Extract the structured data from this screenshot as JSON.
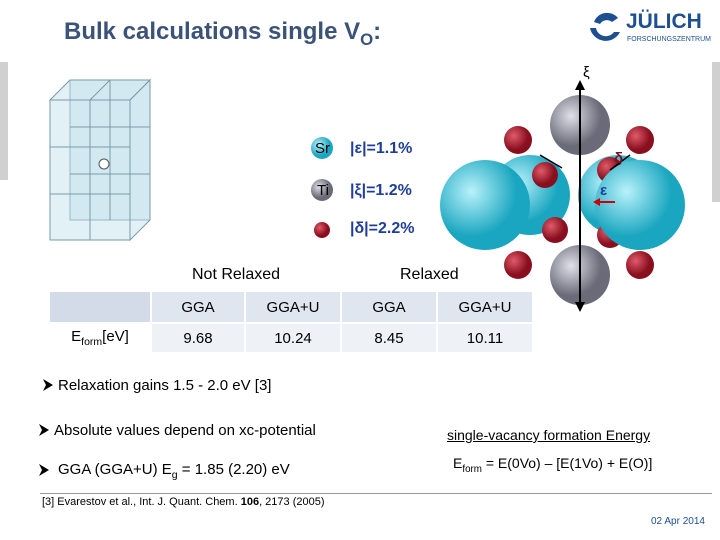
{
  "header": {
    "title": "Bulk calculations single V",
    "title_sub": "O",
    "title_tail": ":",
    "logo": "JÜLICH",
    "logo_sub": "FORSCHUNGSZENTRUM"
  },
  "figure": {
    "legend": [
      {
        "atom": "Sr",
        "label": "|ε|=1.1%"
      },
      {
        "atom": "Ti",
        "label": "|ξ|=1.2%"
      },
      {
        "label": "|δ|=2.2%"
      }
    ],
    "arrows": {
      "xi": "ξ",
      "delta": "δ",
      "epsilon": "ε"
    }
  },
  "table": {
    "groups": [
      "Not Relaxed",
      "Relaxed"
    ],
    "header": [
      "GGA",
      "GGA+U",
      "GGA",
      "GGA+U"
    ],
    "row_label": "E",
    "row_label_sub": "form",
    "row_label_tail": "[eV]",
    "values": [
      "9.68",
      "10.24",
      "8.45",
      "10.11"
    ]
  },
  "bullets": [
    {
      "text": "Relaxation gains 1.5 - 2.0 eV [3]"
    },
    {
      "text": "Absolute values depend on xc-potential"
    },
    {
      "text": "GGA (GGA+U) E",
      "sub": "g",
      "tail": " = 1.85 (2.20) eV"
    }
  ],
  "definition": {
    "caption": "single-vacancy formation Energy",
    "lhs": "E",
    "lhs_sub": "form",
    "rhs": " = E(0Vo) – [E(1Vo) + E(O)]"
  },
  "reference": {
    "pre": "[3] Evarestov et al., Int. J. Quant. Chem. ",
    "volume": "106",
    "post": ", 2173 (2005)"
  },
  "footer": {
    "date": "02 Apr 2014"
  }
}
